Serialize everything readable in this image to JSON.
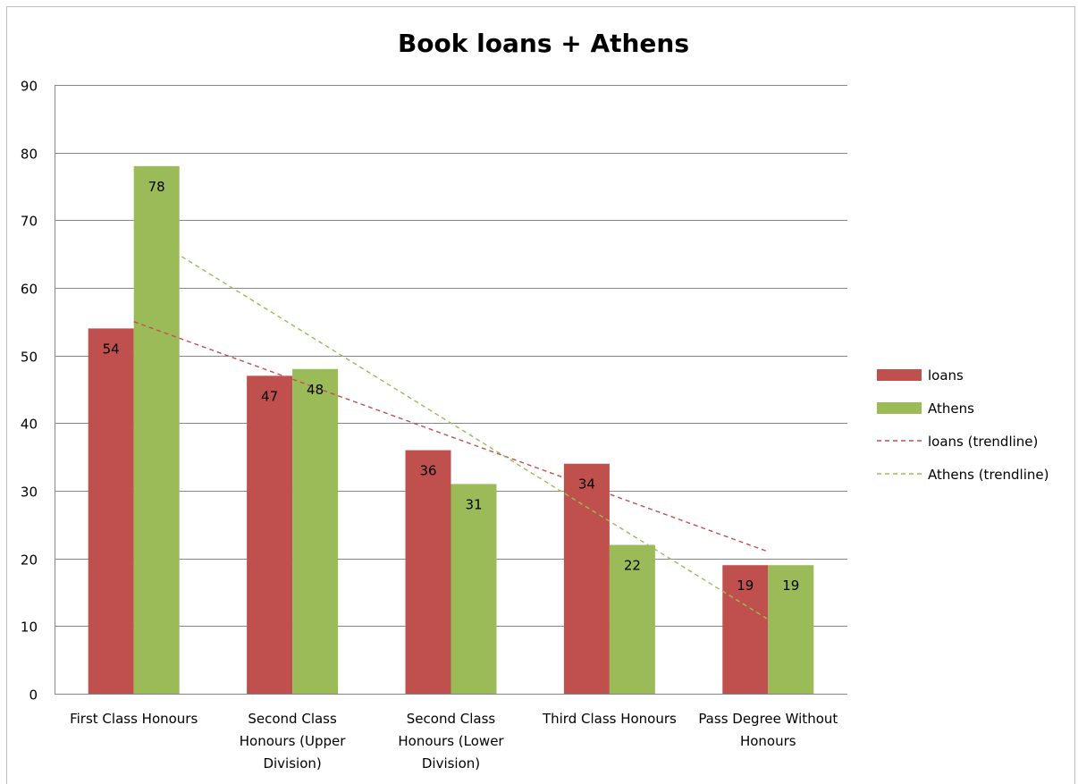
{
  "chart_data": {
    "type": "bar",
    "title": "Book loans + Athens",
    "categories": [
      [
        "First Class Honours"
      ],
      [
        "Second Class",
        "Honours (Upper",
        "Division)"
      ],
      [
        "Second Class",
        "Honours (Lower",
        "Division)"
      ],
      [
        "Third Class Honours"
      ],
      [
        "Pass Degree Without",
        "Honours"
      ]
    ],
    "series": [
      {
        "name": "loans",
        "values": [
          54,
          47,
          36,
          34,
          19
        ],
        "color": "#c0504d"
      },
      {
        "name": "Athens",
        "values": [
          78,
          48,
          31,
          22,
          19
        ],
        "color": "#9bbb59"
      }
    ],
    "data_labels": [
      [
        "54",
        "47",
        "36",
        "34",
        "19"
      ],
      [
        "78",
        "48",
        "31",
        "22",
        "19"
      ]
    ],
    "trendlines": [
      {
        "name": "loans (trendline)",
        "type": "linear",
        "start": 55,
        "end": 21,
        "color": "#c0504d"
      },
      {
        "name": "Athens (trendline)",
        "type": "linear",
        "start": 69,
        "end": 11,
        "color": "#9bbb59"
      }
    ],
    "ylim": [
      0,
      90
    ],
    "yticks": [
      "0",
      "10",
      "20",
      "30",
      "40",
      "50",
      "60",
      "70",
      "80",
      "90"
    ],
    "grid": true,
    "legend_position": "right",
    "xlabel": "",
    "ylabel": ""
  }
}
